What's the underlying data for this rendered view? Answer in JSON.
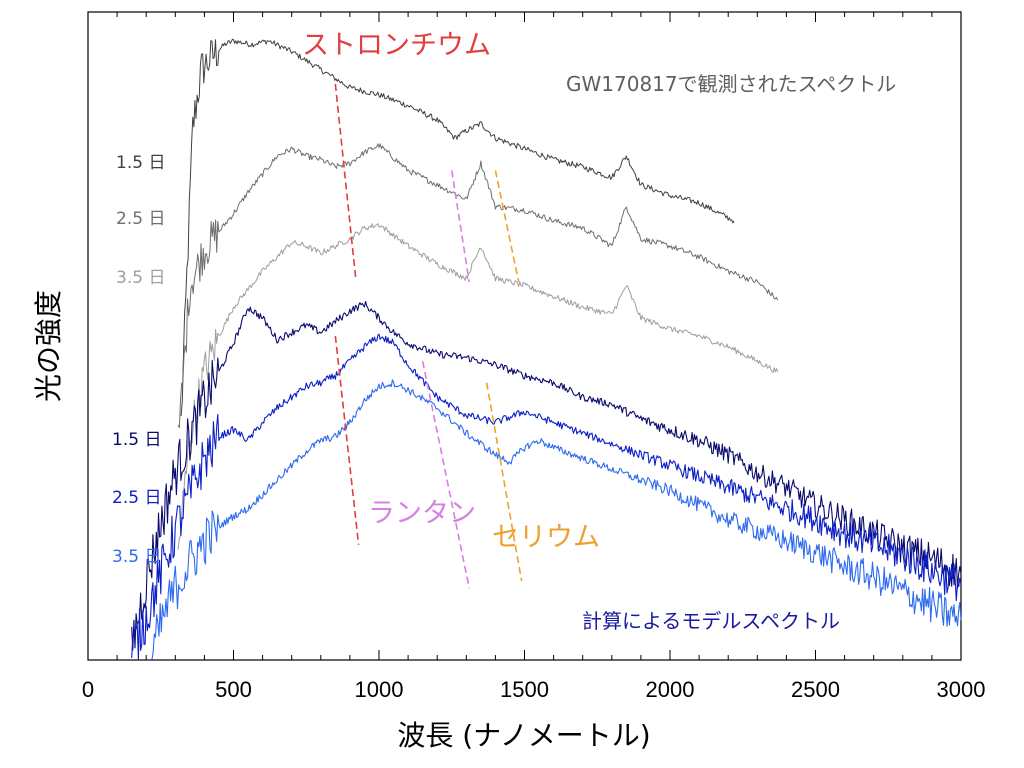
{
  "chart_data": {
    "type": "line",
    "xlabel": "波長 (ナノメートル)",
    "ylabel": "光の強度",
    "xlim": [
      0,
      3000
    ],
    "xticks": [
      "0",
      "500",
      "1000",
      "1500",
      "2000",
      "2500",
      "3000"
    ],
    "y_ticks_labeled": false,
    "groups": {
      "observed": {
        "label": "GW170817で観測されたスペクトル",
        "color": "#5f5f5f",
        "day_labels": [
          "1.5 日",
          "2.5 日",
          "3.5 日"
        ],
        "day_colors": [
          "#404040",
          "#6e6e6e",
          "#9e9e9e"
        ]
      },
      "model": {
        "label": "計算によるモデルスペクトル",
        "color": "#1a1aa0",
        "day_labels": [
          "1.5 日",
          "2.5 日",
          "3.5 日"
        ],
        "day_colors": [
          "#0b0b6e",
          "#0c1fc7",
          "#2e6bf0"
        ]
      }
    },
    "series": [
      {
        "group": "observed",
        "day": "1.5 日",
        "color": "#404040",
        "x": [
          320,
          360,
          390,
          430,
          470,
          500,
          560,
          620,
          700,
          800,
          900,
          1000,
          1100,
          1200,
          1260,
          1300,
          1350,
          1400,
          1500,
          1600,
          1700,
          1800,
          1850,
          1900,
          2000,
          2100,
          2220
        ],
        "y": [
          3.3,
          7.4,
          8.2,
          8.4,
          8.55,
          8.6,
          8.55,
          8.6,
          8.45,
          8.2,
          7.95,
          7.85,
          7.7,
          7.5,
          7.25,
          7.35,
          7.45,
          7.25,
          7.1,
          6.95,
          6.85,
          6.7,
          7.0,
          6.6,
          6.45,
          6.35,
          6.1
        ]
      },
      {
        "group": "observed",
        "day": "2.5 日",
        "color": "#6e6e6e",
        "x": [
          310,
          350,
          400,
          450,
          500,
          550,
          600,
          650,
          700,
          750,
          800,
          850,
          900,
          950,
          1000,
          1100,
          1200,
          1300,
          1350,
          1400,
          1500,
          1600,
          1700,
          1800,
          1850,
          1900,
          2000,
          2100,
          2200,
          2300,
          2370
        ],
        "y": [
          3.0,
          5.2,
          5.7,
          5.95,
          6.2,
          6.5,
          6.75,
          7.0,
          7.1,
          7.0,
          6.95,
          6.85,
          6.9,
          7.05,
          7.15,
          6.8,
          6.6,
          6.4,
          6.9,
          6.3,
          6.25,
          6.1,
          6.0,
          5.75,
          6.3,
          5.85,
          5.75,
          5.6,
          5.4,
          5.25,
          5.0
        ]
      },
      {
        "group": "observed",
        "day": "3.5 日",
        "color": "#9e9e9e",
        "x": [
          310,
          350,
          400,
          450,
          500,
          550,
          600,
          650,
          700,
          750,
          800,
          850,
          900,
          950,
          1000,
          1050,
          1100,
          1200,
          1300,
          1350,
          1400,
          1500,
          1600,
          1700,
          1800,
          1850,
          1900,
          2000,
          2100,
          2200,
          2300,
          2370
        ],
        "y": [
          1.5,
          3.1,
          4.0,
          4.5,
          4.9,
          5.15,
          5.4,
          5.6,
          5.8,
          5.75,
          5.65,
          5.75,
          5.85,
          6.0,
          6.05,
          5.9,
          5.75,
          5.5,
          5.3,
          5.75,
          5.3,
          5.2,
          5.05,
          4.9,
          4.8,
          5.2,
          4.75,
          4.6,
          4.5,
          4.35,
          4.15,
          4.0
        ]
      },
      {
        "group": "model",
        "day": "1.5 日",
        "color": "#0b0b6e",
        "x": [
          150,
          200,
          250,
          300,
          350,
          400,
          450,
          500,
          550,
          600,
          650,
          700,
          750,
          800,
          850,
          900,
          950,
          1000,
          1050,
          1100,
          1200,
          1300,
          1400,
          1500,
          1600,
          1700,
          1800,
          1900,
          2000,
          2100,
          2200,
          2300,
          2400,
          2500,
          2600,
          2700,
          2800,
          2900,
          3000
        ],
        "y": [
          0.2,
          1.1,
          1.9,
          2.6,
          3.1,
          3.6,
          4.0,
          4.4,
          4.9,
          4.75,
          4.45,
          4.55,
          4.65,
          4.55,
          4.7,
          4.85,
          4.95,
          4.75,
          4.55,
          4.4,
          4.25,
          4.2,
          4.1,
          3.95,
          3.85,
          3.65,
          3.55,
          3.35,
          3.2,
          3.05,
          2.85,
          2.6,
          2.4,
          2.15,
          1.95,
          1.75,
          1.55,
          1.4,
          1.2
        ]
      },
      {
        "group": "model",
        "day": "2.5 日",
        "color": "#0c1fc7",
        "x": [
          150,
          200,
          250,
          300,
          350,
          400,
          450,
          500,
          550,
          600,
          650,
          700,
          750,
          800,
          850,
          900,
          950,
          1000,
          1050,
          1100,
          1200,
          1300,
          1400,
          1500,
          1600,
          1700,
          1800,
          1900,
          2000,
          2100,
          2200,
          2300,
          2400,
          2500,
          2600,
          2700,
          2800,
          2900,
          3000
        ],
        "y": [
          0.1,
          0.6,
          1.2,
          1.8,
          2.3,
          2.8,
          3.1,
          3.2,
          3.05,
          3.3,
          3.5,
          3.65,
          3.8,
          3.85,
          3.95,
          4.15,
          4.35,
          4.5,
          4.4,
          4.1,
          3.65,
          3.4,
          3.3,
          3.45,
          3.3,
          3.15,
          3.0,
          2.85,
          2.7,
          2.55,
          2.4,
          2.25,
          2.1,
          1.95,
          1.75,
          1.6,
          1.45,
          1.25,
          1.05
        ]
      },
      {
        "group": "model",
        "day": "3.5 日",
        "color": "#2e6bf0",
        "x": [
          220,
          260,
          300,
          350,
          400,
          450,
          500,
          550,
          600,
          650,
          700,
          750,
          800,
          850,
          900,
          950,
          1000,
          1050,
          1100,
          1200,
          1300,
          1400,
          1450,
          1500,
          1550,
          1600,
          1700,
          1800,
          1900,
          2000,
          2100,
          2200,
          2300,
          2400,
          2500,
          2600,
          2700,
          2800,
          2900,
          3000
        ],
        "y": [
          0.1,
          0.6,
          1.0,
          1.35,
          1.65,
          1.85,
          2.0,
          2.1,
          2.3,
          2.5,
          2.7,
          2.9,
          3.05,
          3.1,
          3.3,
          3.6,
          3.8,
          3.85,
          3.75,
          3.5,
          3.15,
          2.85,
          2.75,
          2.95,
          3.05,
          2.95,
          2.8,
          2.65,
          2.5,
          2.35,
          2.15,
          1.95,
          1.8,
          1.65,
          1.5,
          1.3,
          1.15,
          0.95,
          0.75,
          0.55
        ]
      }
    ],
    "annotations": [
      {
        "text": "ストロンチウム",
        "color": "#e23c3c",
        "lines": [
          {
            "x": [
              850,
              920
            ],
            "y": [
              8.0,
              5.3
            ]
          },
          {
            "x": [
              850,
              930
            ],
            "y": [
              4.5,
              1.6
            ]
          }
        ]
      },
      {
        "text": "ランタン",
        "color": "#d97ee6",
        "lines": [
          {
            "x": [
              1250,
              1310
            ],
            "y": [
              6.8,
              5.25
            ]
          },
          {
            "x": [
              1150,
              1310
            ],
            "y": [
              4.15,
              1.0
            ]
          }
        ]
      },
      {
        "text": "セリウム",
        "color": "#f0a030",
        "lines": [
          {
            "x": [
              1400,
              1480
            ],
            "y": [
              6.8,
              5.25
            ]
          },
          {
            "x": [
              1370,
              1490
            ],
            "y": [
              3.85,
              1.1
            ]
          }
        ]
      }
    ]
  }
}
